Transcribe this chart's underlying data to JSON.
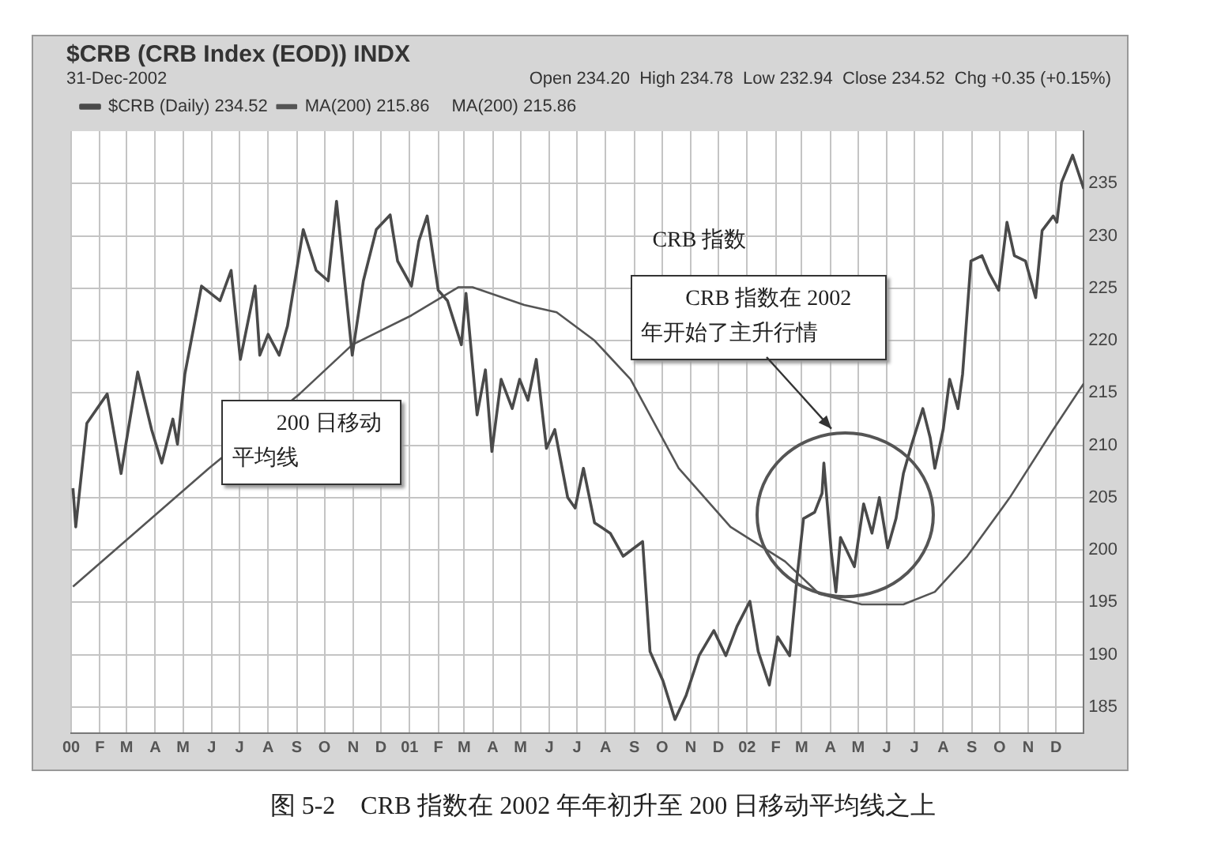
{
  "chart_data": {
    "type": "line",
    "title": "$CRB (CRB Index (EOD)) INDX",
    "subtitle": "31-Dec-2002",
    "annotations": [
      "MA(200) 215.86",
      "Open 234.20  High 234.78  Low 232.94  Close 234.52  Chg +0.35 (+0.15%)",
      "CRB 指数",
      "200 日移动平均线",
      "CRB 指数在 2002 年开始了主升行情",
      "图 5-2　CRB 指数在 2002 年年初升至 200 日移动平均线之上"
    ],
    "series": [
      {
        "name": "$CRB (Daily) 234.52",
        "color": "#4a4a4a",
        "x": [
          "2000-01-03",
          "2000-01-06",
          "2000-01-18",
          "2000-02-09",
          "2000-02-24",
          "2000-03-13",
          "2000-03-28",
          "2000-04-08",
          "2000-04-20",
          "2000-04-25",
          "2000-05-03",
          "2000-05-12",
          "2000-05-21",
          "2000-06-10",
          "2000-06-22",
          "2000-07-02",
          "2000-07-18",
          "2000-07-23",
          "2000-08-01",
          "2000-08-13",
          "2000-08-22",
          "2000-09-08",
          "2000-09-22",
          "2000-10-05",
          "2000-10-14",
          "2000-10-31",
          "2000-11-12",
          "2000-11-26",
          "2000-12-11",
          "2000-12-19",
          "2001-01-03",
          "2001-01-11",
          "2001-01-20",
          "2001-02-01",
          "2001-02-11",
          "2001-02-26",
          "2001-03-03",
          "2001-03-15",
          "2001-03-24",
          "2001-03-31",
          "2001-04-10",
          "2001-04-22",
          "2001-04-30",
          "2001-05-09",
          "2001-05-18",
          "2001-05-29",
          "2001-06-07",
          "2001-06-21",
          "2001-06-29",
          "2001-07-08",
          "2001-07-20",
          "2001-08-06",
          "2001-08-20",
          "2001-09-10",
          "2001-09-18",
          "2001-10-02",
          "2001-10-15",
          "2001-10-27",
          "2001-11-10",
          "2001-11-26",
          "2001-12-09",
          "2001-12-21",
          "2002-01-04",
          "2002-01-13",
          "2002-01-25",
          "2002-02-03",
          "2002-02-16",
          "2002-02-24",
          "2002-03-03",
          "2002-03-15",
          "2002-03-23",
          "2002-03-25",
          "2002-04-02",
          "2002-04-07",
          "2002-04-12",
          "2002-04-27",
          "2002-05-07",
          "2002-05-16",
          "2002-05-24",
          "2002-06-02",
          "2002-06-11",
          "2002-06-19",
          "2002-06-28",
          "2002-07-10",
          "2002-07-18",
          "2002-07-23",
          "2002-08-01",
          "2002-08-08",
          "2002-08-17",
          "2002-08-22",
          "2002-08-31",
          "2002-09-12",
          "2002-09-20",
          "2002-09-30",
          "2002-10-09",
          "2002-10-17",
          "2002-10-29",
          "2002-11-09",
          "2002-11-16",
          "2002-11-28",
          "2002-12-02",
          "2002-12-07",
          "2002-12-19",
          "2002-12-31"
        ],
        "values": [
          205.9,
          202.2,
          212.1,
          214.9,
          207.3,
          217,
          211.5,
          208.3,
          212.5,
          210.1,
          216.8,
          221,
          225.2,
          223.8,
          226.7,
          218.2,
          225.2,
          218.6,
          220.6,
          218.6,
          221.4,
          230.6,
          226.7,
          225.7,
          233.3,
          218.6,
          225.7,
          230.6,
          232,
          227.6,
          225.2,
          229.5,
          231.9,
          224.8,
          223.8,
          219.6,
          224.5,
          212.9,
          217.2,
          209.4,
          216.3,
          213.5,
          216.3,
          214.3,
          218.2,
          209.7,
          211.5,
          205,
          204,
          207.8,
          202.6,
          201.6,
          199.4,
          200.8,
          190.3,
          187.5,
          183.8,
          186.1,
          189.9,
          192.3,
          189.9,
          192.7,
          195.1,
          190.3,
          187.1,
          191.7,
          189.9,
          197.4,
          203,
          203.6,
          205.4,
          208.3,
          199.8,
          196,
          201.2,
          198.4,
          204.4,
          201.6,
          205,
          200.2,
          203,
          207.3,
          210.1,
          213.5,
          210.7,
          207.8,
          211.5,
          216.3,
          213.5,
          216.8,
          227.6,
          228.1,
          226.4,
          224.8,
          231.3,
          228.1,
          227.6,
          224.1,
          230.5,
          231.9,
          231.3,
          235.1,
          237.7,
          234.5
        ]
      },
      {
        "name": "MA(200) 215.86",
        "color": "#555555",
        "x": [
          "2000-01-03",
          "2000-05-29",
          "2000-09-04",
          "2000-10-31",
          "2001-01-03",
          "2001-02-23",
          "2001-03-10",
          "2001-05-05",
          "2001-06-09",
          "2001-07-20",
          "2001-08-28",
          "2001-10-19",
          "2001-12-14",
          "2002-02-11",
          "2002-03-20",
          "2002-05-05",
          "2002-06-19",
          "2002-07-23",
          "2002-08-27",
          "2002-10-12",
          "2002-11-28",
          "2002-12-31"
        ],
        "values": [
          196.5,
          207.8,
          214.9,
          219.6,
          222.4,
          225.1,
          225.1,
          223.4,
          222.7,
          220,
          216.3,
          207.8,
          202.2,
          198.9,
          195.8,
          194.8,
          194.8,
          196,
          199.4,
          205,
          211.5,
          215.9
        ]
      }
    ],
    "xlim": [
      "2000-01-01",
      "2002-12-31"
    ],
    "xticks": [
      {
        "value": "2000-01",
        "label": "00"
      },
      {
        "value": "2000-02",
        "label": "F"
      },
      {
        "value": "2000-03",
        "label": "M"
      },
      {
        "value": "2000-04",
        "label": "A"
      },
      {
        "value": "2000-05",
        "label": "M"
      },
      {
        "value": "2000-06",
        "label": "J"
      },
      {
        "value": "2000-07",
        "label": "J"
      },
      {
        "value": "2000-08",
        "label": "A"
      },
      {
        "value": "2000-09",
        "label": "S"
      },
      {
        "value": "2000-10",
        "label": "O"
      },
      {
        "value": "2000-11",
        "label": "N"
      },
      {
        "value": "2000-12",
        "label": "D"
      },
      {
        "value": "2001-01",
        "label": "01"
      },
      {
        "value": "2001-02",
        "label": "F"
      },
      {
        "value": "2001-03",
        "label": "M"
      },
      {
        "value": "2001-04",
        "label": "A"
      },
      {
        "value": "2001-05",
        "label": "M"
      },
      {
        "value": "2001-06",
        "label": "J"
      },
      {
        "value": "2001-07",
        "label": "J"
      },
      {
        "value": "2001-08",
        "label": "A"
      },
      {
        "value": "2001-09",
        "label": "S"
      },
      {
        "value": "2001-10",
        "label": "O"
      },
      {
        "value": "2001-11",
        "label": "N"
      },
      {
        "value": "2001-12",
        "label": "D"
      },
      {
        "value": "2002-01",
        "label": "02"
      },
      {
        "value": "2002-02",
        "label": "F"
      },
      {
        "value": "2002-03",
        "label": "M"
      },
      {
        "value": "2002-04",
        "label": "A"
      },
      {
        "value": "2002-05",
        "label": "M"
      },
      {
        "value": "2002-06",
        "label": "J"
      },
      {
        "value": "2002-07",
        "label": "J"
      },
      {
        "value": "2002-08",
        "label": "A"
      },
      {
        "value": "2002-09",
        "label": "S"
      },
      {
        "value": "2002-10",
        "label": "O"
      },
      {
        "value": "2002-11",
        "label": "N"
      },
      {
        "value": "2002-12",
        "label": "D"
      }
    ],
    "ylim": [
      182.5,
      240
    ],
    "yticks": [
      185,
      190,
      195,
      200,
      205,
      210,
      215,
      220,
      225,
      230,
      235
    ],
    "grid": true,
    "legend": "top left",
    "marker": "none",
    "line_style": "solid"
  }
}
